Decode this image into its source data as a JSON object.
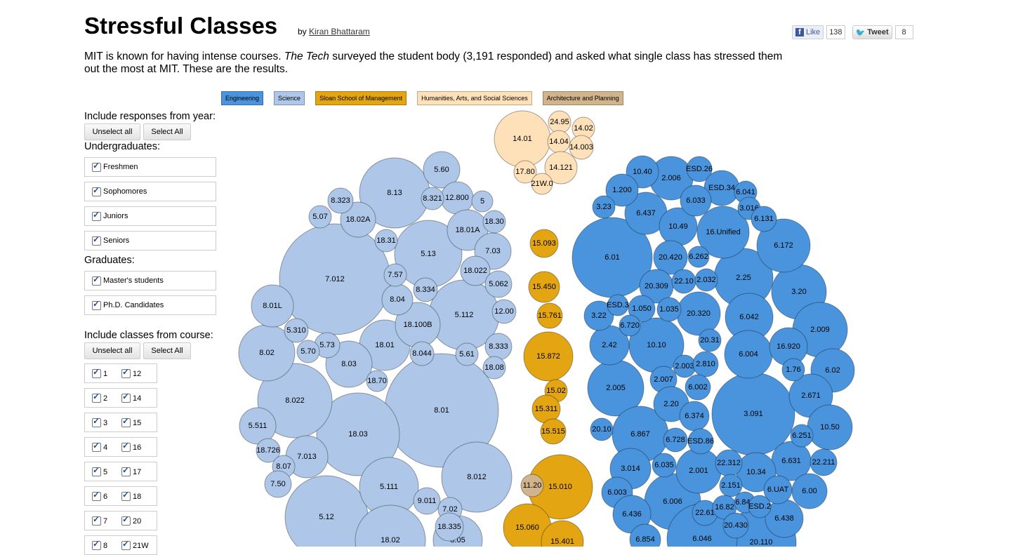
{
  "title": "Stressful Classes",
  "byline": {
    "prefix": "by",
    "author": "Kiran Bhattaram"
  },
  "intro": {
    "before": "MIT is known for having intense courses. ",
    "publication": "The Tech",
    "after": " surveyed the student body (3,191 responded) and asked what single class has stressed them out the most at MIT. These are the results."
  },
  "social": {
    "like_label": "Like",
    "like_count": "138",
    "tweet_label": "Tweet",
    "tweet_count": "8"
  },
  "legend": [
    {
      "label": "Engineering",
      "color": "#4a94dd"
    },
    {
      "label": "Science",
      "color": "#aec7e8"
    },
    {
      "label": "Sloan School of Management",
      "color": "#e3a512"
    },
    {
      "label": "Humanities, Arts, and Social Sciences",
      "color": "#fee0b9"
    },
    {
      "label": "Architecture and Planning",
      "color": "#d2b48c"
    }
  ],
  "year_filter": {
    "heading": "Include responses from year:",
    "unselect_label": "Unselect all",
    "select_label": "Select All",
    "undergrad_heading": "Undergraduates:",
    "undergrad": [
      "Freshmen",
      "Sophomores",
      "Juniors",
      "Seniors"
    ],
    "grad_heading": "Graduates:",
    "grad": [
      "Master's students",
      "Ph.D. Candidates"
    ]
  },
  "course_filter": {
    "heading": "Include classes from course:",
    "unselect_label": "Unselect all",
    "select_label": "Select All",
    "rows": [
      [
        "1",
        "12"
      ],
      [
        "2",
        "14"
      ],
      [
        "3",
        "15"
      ],
      [
        "4",
        "16"
      ],
      [
        "5",
        "17"
      ],
      [
        "6",
        "18"
      ],
      [
        "7",
        "20"
      ],
      [
        "8",
        "21W"
      ]
    ]
  },
  "chart_data": {
    "type": "bubble",
    "colors": {
      "E": "#4a94dd",
      "S": "#aec7e8",
      "M": "#e3a512",
      "H": "#fee0b9",
      "A": "#d2b48c"
    },
    "bubbles": [
      [
        "S",
        629,
        585,
        81,
        "8.01"
      ],
      [
        "S",
        510,
        619,
        59,
        "18.03"
      ],
      [
        "S",
        465,
        737,
        59,
        "5.12"
      ],
      [
        "S",
        477,
        398,
        79,
        "7.012"
      ],
      [
        "S",
        562,
        275,
        50,
        "8.13"
      ],
      [
        "S",
        610,
        362,
        48,
        "5.13"
      ],
      [
        "S",
        661,
        449,
        50,
        "5.112"
      ],
      [
        "S",
        420,
        571,
        53,
        "8.022"
      ],
      [
        "S",
        679,
        680,
        50,
        "8.012"
      ],
      [
        "S",
        554,
        694,
        42,
        "5.111"
      ],
      [
        "S",
        380,
        503,
        40,
        "8.02"
      ],
      [
        "S",
        548,
        492,
        36,
        "18.01"
      ],
      [
        "S",
        388,
        436,
        30,
        "8.01L"
      ],
      [
        "S",
        595,
        463,
        32,
        "18.100B"
      ],
      [
        "S",
        497,
        519,
        33,
        "8.03"
      ],
      [
        "S",
        437,
        651,
        30,
        "7.013"
      ],
      [
        "S",
        367,
        607,
        26,
        "5.511"
      ],
      [
        "S",
        556,
        770,
        50,
        "18.02"
      ],
      [
        "S",
        466,
        492,
        18,
        "5.73"
      ],
      [
        "S",
        652,
        770,
        35,
        "8.05"
      ],
      [
        "S",
        510,
        313,
        25,
        "18.02A"
      ],
      [
        "S",
        629,
        242,
        26,
        "5.60"
      ],
      [
        "S",
        651,
        282,
        23,
        "12.800"
      ],
      [
        "S",
        666,
        328,
        29,
        "18.01A"
      ],
      [
        "S",
        702,
        358,
        26,
        "7.03"
      ],
      [
        "S",
        677,
        386,
        21,
        "18.022"
      ],
      [
        "S",
        710,
        405,
        19,
        "5.062"
      ],
      [
        "S",
        718,
        444,
        17,
        "12.00"
      ],
      [
        "S",
        710,
        494,
        19,
        "8.333"
      ],
      [
        "S",
        704,
        524,
        16,
        "18.08"
      ],
      [
        "S",
        665,
        505,
        16,
        "5.61"
      ],
      [
        "S",
        601,
        504,
        17,
        "8.044"
      ],
      [
        "S",
        566,
        427,
        22,
        "8.04"
      ],
      [
        "S",
        606,
        413,
        17,
        "8.334"
      ],
      [
        "S",
        563,
        392,
        16,
        "7.57"
      ],
      [
        "S",
        550,
        343,
        16,
        "18.31"
      ],
      [
        "S",
        616,
        283,
        16,
        "8.321"
      ],
      [
        "S",
        687,
        287,
        15,
        "5"
      ],
      [
        "S",
        704,
        316,
        16,
        "18.30"
      ],
      [
        "S",
        485,
        286,
        18,
        "8.323"
      ],
      [
        "S",
        456,
        309,
        16,
        "5.07"
      ],
      [
        "S",
        422,
        471,
        17,
        "5.310"
      ],
      [
        "S",
        439,
        501,
        16,
        "5.70"
      ],
      [
        "S",
        537,
        543,
        15,
        "18.70"
      ],
      [
        "S",
        382,
        642,
        17,
        "18.726"
      ],
      [
        "S",
        404,
        665,
        16,
        "8.07"
      ],
      [
        "S",
        396,
        690,
        19,
        "7.50"
      ],
      [
        "S",
        608,
        714,
        19,
        "9.011"
      ],
      [
        "S",
        641,
        726,
        17,
        "7.02"
      ],
      [
        "S",
        640,
        751,
        20,
        "18.335"
      ],
      [
        "H",
        744,
        198,
        40,
        "14.01"
      ],
      [
        "H",
        797,
        174,
        16,
        "24.95"
      ],
      [
        "H",
        831,
        183,
        16,
        "14.02"
      ],
      [
        "H",
        796,
        202,
        16,
        "14.04"
      ],
      [
        "H",
        828,
        210,
        17,
        "14.003"
      ],
      [
        "H",
        799,
        239,
        23,
        "14.121"
      ],
      [
        "H",
        748,
        245,
        16,
        "17.80"
      ],
      [
        "H",
        772,
        262,
        15,
        "21W.0"
      ],
      [
        "M",
        775,
        347,
        20,
        "15.093"
      ],
      [
        "M",
        775,
        409,
        22,
        "15.450"
      ],
      [
        "M",
        783,
        450,
        18,
        "15.761"
      ],
      [
        "M",
        781,
        508,
        35,
        "15.872"
      ],
      [
        "M",
        792,
        557,
        16,
        "15.02"
      ],
      [
        "M",
        778,
        583,
        20,
        "15.311"
      ],
      [
        "M",
        788,
        615,
        18,
        "15.515"
      ],
      [
        "M",
        798,
        694,
        46,
        "15.010"
      ],
      [
        "M",
        751,
        752,
        34,
        "15.060"
      ],
      [
        "M",
        801,
        772,
        30,
        "15.401"
      ],
      [
        "A",
        758,
        692,
        16,
        "11.20"
      ],
      [
        "E",
        872,
        367,
        57,
        "6.01"
      ],
      [
        "E",
        1073,
        590,
        59,
        "3.091"
      ],
      [
        "E",
        877,
        553,
        40,
        "2.005"
      ],
      [
        "E",
        958,
        715,
        40,
        "6.006"
      ],
      [
        "E",
        1059,
        396,
        42,
        "2.25"
      ],
      [
        "E",
        1030,
        331,
        37,
        "16.Unified"
      ],
      [
        "E",
        1138,
        416,
        39,
        "3.20"
      ],
      [
        "E",
        1168,
        470,
        39,
        "2.009"
      ],
      [
        "E",
        1116,
        350,
        38,
        "6.172"
      ],
      [
        "E",
        1067,
        452,
        34,
        "6.042"
      ],
      [
        "E",
        1066,
        505,
        34,
        "6.004"
      ],
      [
        "E",
        935,
        492,
        39,
        "10.10"
      ],
      [
        "E",
        912,
        619,
        40,
        "6.867"
      ],
      [
        "E",
        956,
        254,
        31,
        "2.006"
      ],
      [
        "E",
        920,
        304,
        30,
        "6.437"
      ],
      [
        "E",
        966,
        323,
        27,
        "10.49"
      ],
      [
        "E",
        898,
        668,
        29,
        "3.014"
      ],
      [
        "E",
        868,
        492,
        28,
        "2.42"
      ],
      [
        "E",
        995,
        671,
        32,
        "2.001"
      ],
      [
        "E",
        1084,
        773,
        50,
        "20.110"
      ],
      [
        "E",
        1000,
        768,
        50,
        "6.046"
      ],
      [
        "E",
        1123,
        494,
        27,
        "16.920"
      ],
      [
        "E",
        1186,
        528,
        31,
        "6.02"
      ],
      [
        "E",
        1155,
        564,
        31,
        "2.671"
      ],
      [
        "E",
        1182,
        609,
        32,
        "10.50"
      ],
      [
        "E",
        1127,
        657,
        28,
        "6.631"
      ],
      [
        "E",
        1077,
        673,
        28,
        "10.34"
      ],
      [
        "E",
        1117,
        739,
        27,
        "6.438"
      ],
      [
        "E",
        915,
        245,
        23,
        "10.40"
      ],
      [
        "E",
        886,
        271,
        23,
        "1.200"
      ],
      [
        "E",
        996,
        241,
        18,
        "ESD.26"
      ],
      [
        "E",
        1028,
        268,
        25,
        "ESD.34"
      ],
      [
        "E",
        991,
        286,
        22,
        "6.033"
      ],
      [
        "E",
        1062,
        274,
        16,
        "6.041"
      ],
      [
        "E",
        1067,
        297,
        16,
        "3.016"
      ],
      [
        "E",
        1088,
        312,
        18,
        "6.131"
      ],
      [
        "E",
        860,
        295,
        16,
        "3.23"
      ],
      [
        "E",
        955,
        367,
        24,
        "20.420"
      ],
      [
        "E",
        995,
        366,
        15,
        "6.262"
      ],
      [
        "E",
        935,
        408,
        24,
        "20.309"
      ],
      [
        "E",
        974,
        401,
        17,
        "22.10"
      ],
      [
        "E",
        1006,
        399,
        16,
        "2.032"
      ],
      [
        "E",
        995,
        447,
        31,
        "20.320"
      ],
      [
        "E",
        1011,
        485,
        16,
        "20.31"
      ],
      [
        "E",
        853,
        450,
        21,
        "3.22"
      ],
      [
        "E",
        880,
        435,
        15,
        "ESD.3"
      ],
      [
        "E",
        914,
        440,
        19,
        "1.050"
      ],
      [
        "E",
        953,
        441,
        17,
        "1.035"
      ],
      [
        "E",
        897,
        464,
        15,
        "6.720"
      ],
      [
        "E",
        1130,
        527,
        16,
        "1.76"
      ],
      [
        "E",
        945,
        541,
        19,
        "2.007"
      ],
      [
        "E",
        975,
        522,
        16,
        "2.003"
      ],
      [
        "E",
        1005,
        519,
        18,
        "2.810"
      ],
      [
        "E",
        994,
        552,
        18,
        "6.002"
      ],
      [
        "E",
        956,
        576,
        25,
        "2.20"
      ],
      [
        "E",
        989,
        593,
        21,
        "6.374"
      ],
      [
        "E",
        962,
        627,
        17,
        "6.728"
      ],
      [
        "E",
        998,
        629,
        18,
        "ESD.86"
      ],
      [
        "E",
        1142,
        621,
        16,
        "6.251"
      ],
      [
        "E",
        857,
        612,
        16,
        "20.10"
      ],
      [
        "E",
        946,
        663,
        17,
        "6.035"
      ],
      [
        "E",
        1038,
        660,
        19,
        "22.312"
      ],
      [
        "E",
        1041,
        692,
        16,
        "2.151"
      ],
      [
        "E",
        1108,
        698,
        20,
        "6.UAT"
      ],
      [
        "E",
        1153,
        700,
        25,
        "6.00"
      ],
      [
        "E",
        1173,
        659,
        19,
        "22.211"
      ],
      [
        "E",
        879,
        702,
        22,
        "6.003"
      ],
      [
        "E",
        900,
        733,
        27,
        "6.436"
      ],
      [
        "E",
        1004,
        731,
        18,
        "22.61"
      ],
      [
        "E",
        1032,
        723,
        17,
        "16.82"
      ],
      [
        "E",
        1061,
        716,
        15,
        "6.840"
      ],
      [
        "E",
        1082,
        722,
        16,
        "ESD.2"
      ],
      [
        "E",
        1048,
        749,
        18,
        "20.430"
      ],
      [
        "E",
        919,
        769,
        22,
        "6.854"
      ]
    ]
  }
}
